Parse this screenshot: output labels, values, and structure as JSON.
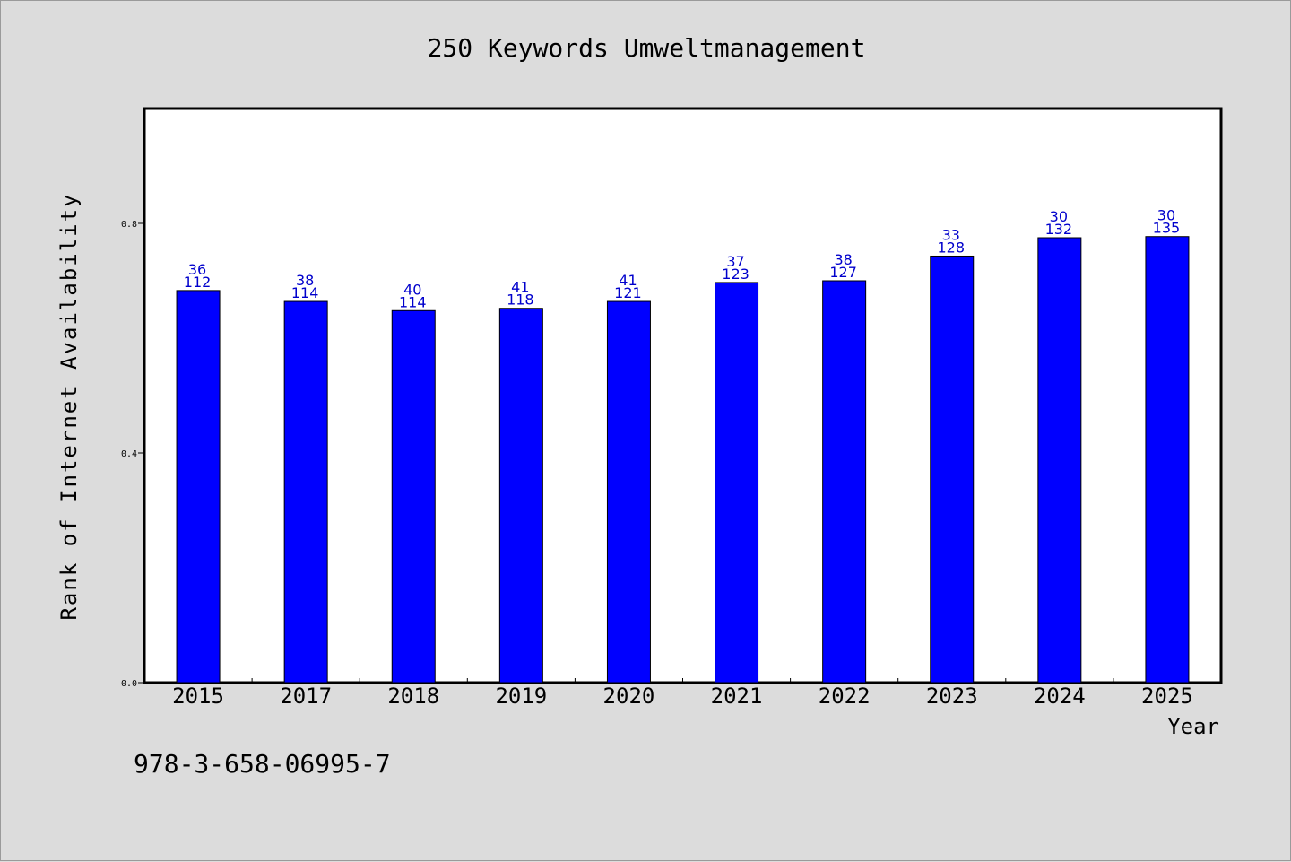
{
  "chart_data": {
    "type": "bar",
    "title": "250 Keywords Umweltmanagement",
    "xlabel": "Year",
    "ylabel": "Rank of Internet Availability",
    "ylim": [
      0.0,
      1.0
    ],
    "yticks": [
      "0.0",
      "0.4",
      "0.8"
    ],
    "ytick_values": [
      0.0,
      0.4,
      0.8
    ],
    "grid": false,
    "bar_color": "#0000ff",
    "label_color": "#0000cc",
    "categories": [
      "2015",
      "2017",
      "2018",
      "2019",
      "2020",
      "2021",
      "2022",
      "2023",
      "2024",
      "2025"
    ],
    "values": [
      0.683,
      0.664,
      0.648,
      0.652,
      0.664,
      0.697,
      0.7,
      0.743,
      0.775,
      0.777
    ],
    "labels_top": [
      "36",
      "38",
      "40",
      "41",
      "41",
      "37",
      "38",
      "33",
      "30",
      "30"
    ],
    "labels_bottom": [
      "112",
      "114",
      "114",
      "118",
      "121",
      "123",
      "127",
      "128",
      "132",
      "135"
    ]
  },
  "footer": {
    "isbn": "978-3-658-06995-7"
  }
}
